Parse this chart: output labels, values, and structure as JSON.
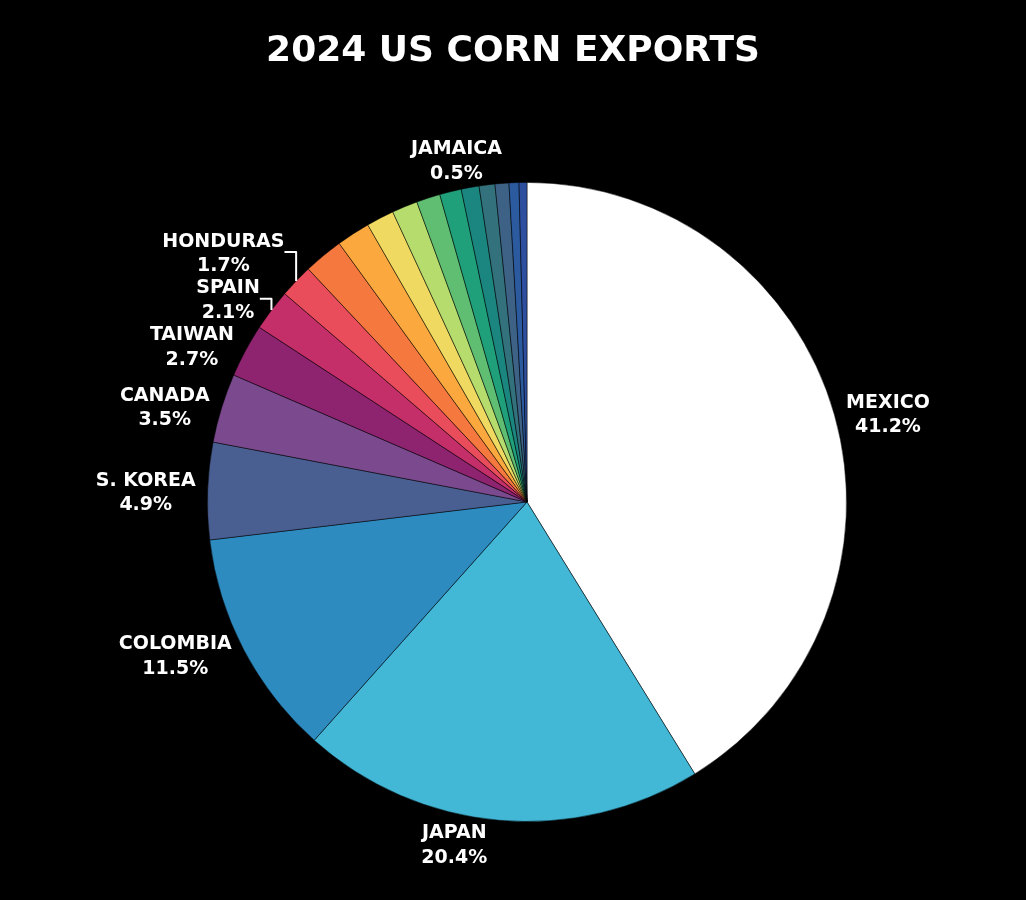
{
  "chart_data": {
    "type": "pie",
    "title": "2024 US CORN EXPORTS",
    "categories": [
      "MEXICO",
      "JAPAN",
      "COLOMBIA",
      "S. KOREA",
      "CANADA",
      "TAIWAN",
      "SPAIN",
      "HONDURAS",
      null,
      null,
      null,
      null,
      null,
      null,
      null,
      null,
      null,
      "JAMAICA",
      null
    ],
    "values": [
      41.2,
      20.4,
      11.5,
      4.9,
      3.5,
      2.7,
      2.1,
      1.7,
      2.0,
      1.7,
      1.4,
      1.3,
      1.2,
      1.1,
      0.9,
      0.8,
      0.7,
      0.5,
      0.4
    ],
    "value_labels": [
      "41.2%",
      "20.4%",
      "11.5%",
      "4.9%",
      "3.5%",
      "2.7%",
      "2.1%",
      "1.7%",
      null,
      null,
      null,
      null,
      null,
      null,
      null,
      null,
      null,
      "0.5%",
      null
    ],
    "colors": [
      "#ffffff",
      "#42b7d6",
      "#2e8bbf",
      "#4a5f91",
      "#7b4a8e",
      "#8e2470",
      "#c42f6a",
      "#e94d5b",
      "#f5783f",
      "#fba93f",
      "#f0d960",
      "#b6dc6d",
      "#5fbe72",
      "#1f9f7a",
      "#1b857f",
      "#33717c",
      "#3d6286",
      "#2b5a9e",
      "#2e4fa0"
    ],
    "legend": false
  }
}
